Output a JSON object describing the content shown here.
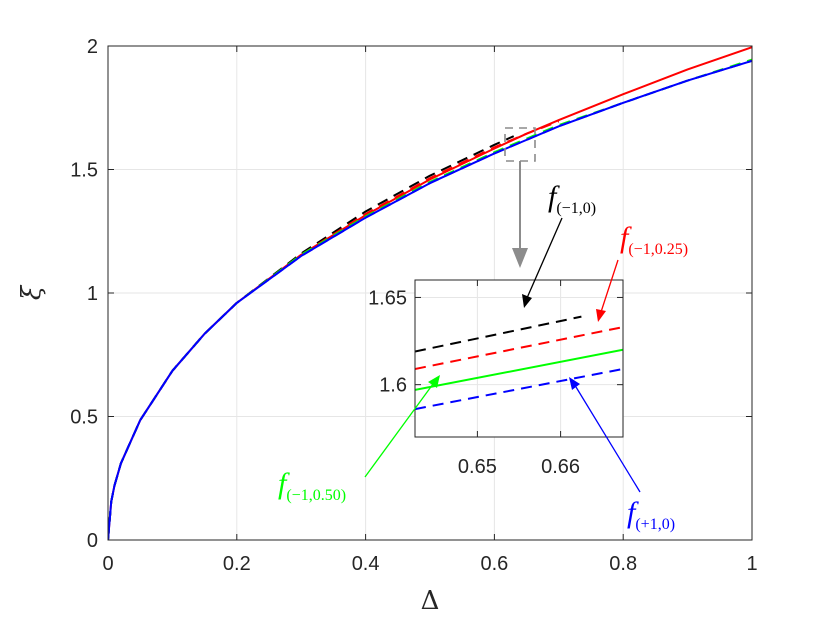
{
  "chart_data": {
    "type": "line",
    "xlabel": "Δ",
    "ylabel": "ξ",
    "xlim": [
      0,
      1
    ],
    "ylim": [
      0,
      2
    ],
    "xticks": [
      "0",
      "0.2",
      "0.4",
      "0.6",
      "0.8",
      "1"
    ],
    "yticks": [
      "0",
      "0.5",
      "1",
      "1.5",
      "2"
    ],
    "grid": true,
    "legend": "none",
    "series": [
      {
        "color": "#ff0000",
        "dash": false,
        "x": [
          0,
          0.005,
          0.01,
          0.02,
          0.05,
          0.1,
          0.15,
          0.2,
          0.3,
          0.4,
          0.5,
          0.6,
          0.65,
          0.7,
          0.8,
          0.9,
          1.0
        ],
        "y": [
          0,
          0.155,
          0.22,
          0.31,
          0.485,
          0.685,
          0.835,
          0.96,
          1.155,
          1.315,
          1.46,
          1.585,
          1.645,
          1.7,
          1.805,
          1.905,
          1.995
        ]
      },
      {
        "color": "#000000",
        "dash": true,
        "x": [
          0,
          0.005,
          0.01,
          0.02,
          0.05,
          0.1,
          0.15,
          0.2,
          0.3,
          0.4,
          0.5,
          0.6,
          0.63
        ],
        "y": [
          0,
          0.155,
          0.22,
          0.31,
          0.485,
          0.685,
          0.835,
          0.96,
          1.16,
          1.33,
          1.475,
          1.6,
          1.635
        ]
      },
      {
        "color": "#ff0000",
        "dash": true,
        "x": [
          0,
          0.005,
          0.01,
          0.02,
          0.05,
          0.1,
          0.15,
          0.2,
          0.3,
          0.4,
          0.5,
          0.6,
          0.65,
          0.7
        ],
        "y": [
          0,
          0.155,
          0.22,
          0.31,
          0.485,
          0.685,
          0.835,
          0.96,
          1.155,
          1.32,
          1.465,
          1.59,
          1.645,
          1.695
        ]
      },
      {
        "color": "#00ff00",
        "dash": true,
        "x": [
          0,
          0.005,
          0.01,
          0.02,
          0.05,
          0.1,
          0.15,
          0.2,
          0.3,
          0.4,
          0.5,
          0.6,
          0.65,
          0.7,
          0.8,
          0.9,
          1.0
        ],
        "y": [
          0,
          0.155,
          0.22,
          0.31,
          0.485,
          0.685,
          0.835,
          0.96,
          1.155,
          1.31,
          1.45,
          1.57,
          1.625,
          1.68,
          1.77,
          1.86,
          1.945
        ]
      },
      {
        "color": "#0000ff",
        "dash": true,
        "x": [
          0,
          0.005,
          0.01,
          0.02,
          0.05,
          0.1,
          0.15,
          0.2,
          0.3,
          0.4,
          0.5,
          0.6,
          0.65,
          0.7,
          0.8,
          0.9,
          1.0
        ],
        "y": [
          0,
          0.155,
          0.22,
          0.31,
          0.485,
          0.685,
          0.835,
          0.96,
          1.15,
          1.305,
          1.445,
          1.565,
          1.62,
          1.675,
          1.77,
          1.86,
          1.94
        ]
      },
      {
        "color": "#0000ff",
        "dash": false,
        "x": [
          0,
          0.005,
          0.01,
          0.02,
          0.05,
          0.1,
          0.15,
          0.2,
          0.3,
          0.4,
          0.5,
          0.6,
          0.65,
          0.7,
          0.8,
          0.9,
          1.0
        ],
        "y": [
          0,
          0.155,
          0.22,
          0.31,
          0.485,
          0.685,
          0.835,
          0.96,
          1.15,
          1.305,
          1.445,
          1.565,
          1.62,
          1.675,
          1.77,
          1.86,
          1.94
        ]
      }
    ],
    "inset": {
      "xlim": [
        0.6425,
        0.6675
      ],
      "ylim": [
        1.57,
        1.66
      ],
      "xticks": [
        "0.65",
        "0.66"
      ],
      "yticks": [
        "1.6",
        "1.65"
      ],
      "series": [
        {
          "color": "#000000",
          "dash": true,
          "x": [
            0.6425,
            0.6625
          ],
          "y": [
            1.619,
            1.639
          ]
        },
        {
          "color": "#ff0000",
          "dash": true,
          "x": [
            0.6425,
            0.6675
          ],
          "y": [
            1.609,
            1.633
          ]
        },
        {
          "color": "#00ff00",
          "dash": false,
          "x": [
            0.6425,
            0.6675
          ],
          "y": [
            1.597,
            1.62
          ]
        },
        {
          "color": "#0000ff",
          "dash": true,
          "x": [
            0.6425,
            0.6675
          ],
          "y": [
            1.586,
            1.609
          ]
        }
      ]
    },
    "annotations": [
      {
        "f": "f",
        "sub": "(−1,0)",
        "color": "#000000"
      },
      {
        "f": "f",
        "sub": "(−1,0.25)",
        "color": "#ff0000"
      },
      {
        "f": "f",
        "sub": "(−1,0.50)",
        "color": "#00ff00"
      },
      {
        "f": "f",
        "sub": "(+1,0)",
        "color": "#0000ff"
      }
    ]
  }
}
